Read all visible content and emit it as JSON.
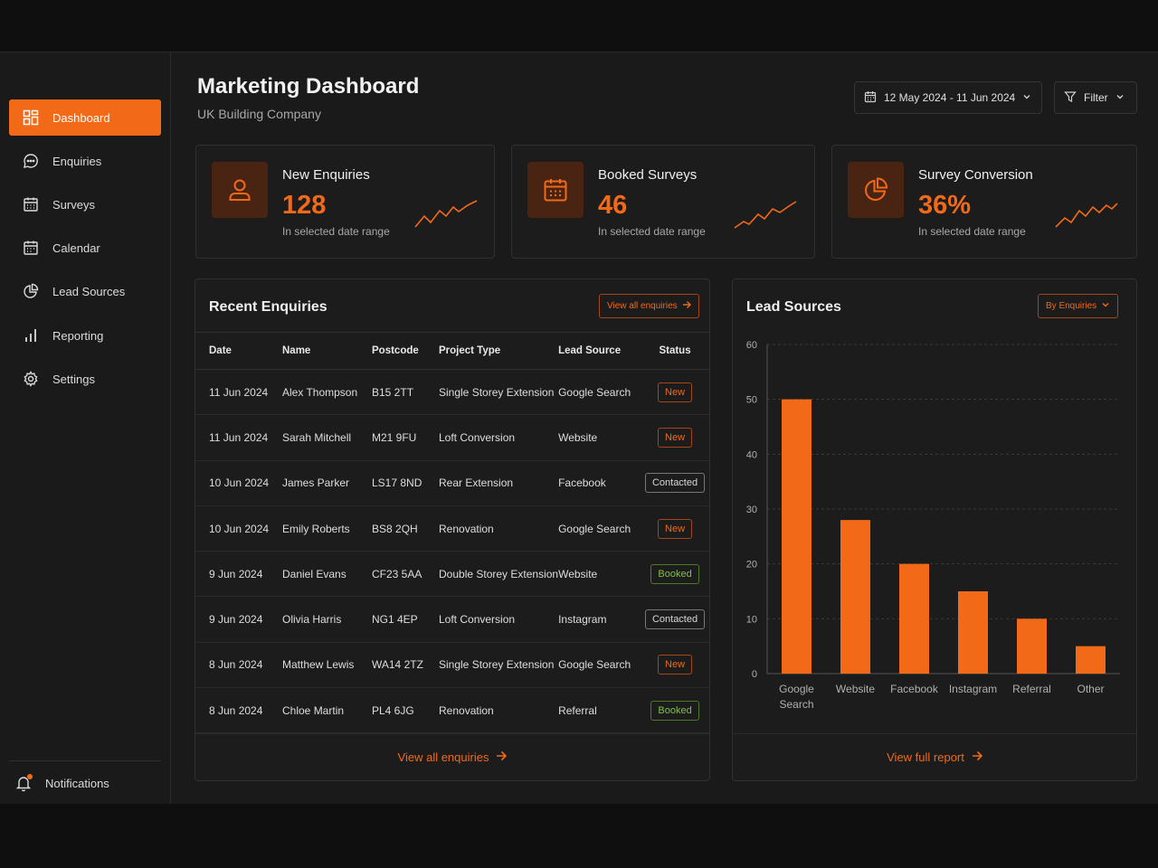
{
  "header": {
    "title": "Marketing Dashboard",
    "subtitle": "UK Building Company"
  },
  "date_range": "12 May 2024 - 11 Jun 2024",
  "filter_label": "Filter",
  "sidebar": {
    "items": [
      {
        "label": "Dashboard",
        "icon": "grid-icon",
        "active": true
      },
      {
        "label": "Enquiries",
        "icon": "chat-bubble-icon"
      },
      {
        "label": "Surveys",
        "icon": "calendar-grid-icon"
      },
      {
        "label": "Calendar",
        "icon": "calendar-icon"
      },
      {
        "label": "Lead Sources",
        "icon": "pie-chart-icon"
      },
      {
        "label": "Reporting",
        "icon": "bar-chart-icon"
      },
      {
        "label": "Settings",
        "icon": "gear-icon"
      }
    ],
    "notifications": "Notifications"
  },
  "kpis": [
    {
      "label": "New Enquiries",
      "value": "128",
      "sub": "In selected date range",
      "icon": "user-icon"
    },
    {
      "label": "Booked Surveys",
      "value": "46",
      "sub": "In selected date range",
      "icon": "calendar-icon"
    },
    {
      "label": "Survey Conversion",
      "value": "36%",
      "sub": "In selected date range",
      "icon": "pie-chart-icon"
    }
  ],
  "enquiries": {
    "title": "Recent Enquiries",
    "view_all_button": "View all enquiries",
    "footer_link": "View all enquiries",
    "columns": [
      "Date",
      "Name",
      "Postcode",
      "Project Type",
      "Lead Source",
      "Status"
    ],
    "rows": [
      [
        "11 Jun 2024",
        "Alex Thompson",
        "B15 2TT",
        "Single Storey Extension",
        "Google Search",
        "New"
      ],
      [
        "11 Jun 2024",
        "Sarah Mitchell",
        "M21 9FU",
        "Loft Conversion",
        "Website",
        "New"
      ],
      [
        "10 Jun 2024",
        "James Parker",
        "LS17 8ND",
        "Rear Extension",
        "Facebook",
        "Contacted"
      ],
      [
        "10 Jun 2024",
        "Emily Roberts",
        "BS8 2QH",
        "Renovation",
        "Google Search",
        "New"
      ],
      [
        "9 Jun 2024",
        "Daniel Evans",
        "CF23 5AA",
        "Double Storey Extension",
        "Website",
        "Booked"
      ],
      [
        "9 Jun 2024",
        "Olivia Harris",
        "NG1 4EP",
        "Loft Conversion",
        "Instagram",
        "Contacted"
      ],
      [
        "8 Jun 2024",
        "Matthew Lewis",
        "WA14 2TZ",
        "Single Storey Extension",
        "Google Search",
        "New"
      ],
      [
        "8 Jun 2024",
        "Chloe Martin",
        "PL4 6JG",
        "Renovation",
        "Referral",
        "Booked"
      ]
    ]
  },
  "lead_sources": {
    "title": "Lead Sources",
    "dropdown": "By Enquiries",
    "footer_link": "View full report"
  },
  "chart_data": {
    "type": "bar",
    "categories": [
      "Google Search",
      "Website",
      "Facebook",
      "Instagram",
      "Referral",
      "Other"
    ],
    "values": [
      50,
      28,
      20,
      15,
      10,
      5
    ],
    "yticks": [
      0,
      10,
      20,
      30,
      40,
      50,
      60
    ],
    "ylim": [
      0,
      60
    ],
    "grid": true,
    "bar_color": "#f26a17"
  },
  "colors": {
    "accent": "#f26a17",
    "booked": "#7fc242",
    "background": "#1a1a1a"
  }
}
